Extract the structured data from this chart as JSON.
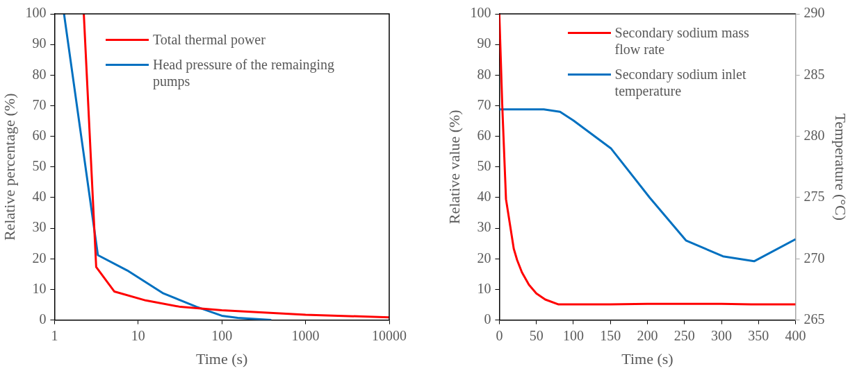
{
  "chart_data": [
    {
      "type": "line",
      "xlabel": "Time (s)",
      "ylabel": "Relative percentage (%)",
      "log": "x",
      "xlim": [
        1,
        10000
      ],
      "xticks": [
        1,
        10,
        100,
        1000,
        10000
      ],
      "ylim": [
        0,
        100
      ],
      "yticks": [
        0,
        10,
        20,
        30,
        40,
        50,
        60,
        70,
        80,
        90,
        100
      ],
      "grid": false,
      "legend": "top right",
      "marker": "none",
      "line_style": "solid",
      "series": [
        {
          "name": "Total thermal power",
          "color": "#ff0000",
          "x": [
            2.24,
            3.15,
            5.2,
            12.3,
            32,
            100,
            1000,
            10000
          ],
          "values": [
            100,
            17.3,
            9.3,
            6.4,
            4.3,
            3.2,
            1.7,
            0.9
          ]
        },
        {
          "name": "Head pressure of the remainging pumps",
          "color": "#0070c0",
          "x": [
            1.3,
            3.3,
            7.4,
            20,
            50,
            100,
            155,
            390
          ],
          "values": [
            100,
            21.2,
            16.2,
            8.7,
            4.3,
            1.4,
            0.7,
            0
          ]
        }
      ]
    },
    {
      "type": "line",
      "xlabel": "Time (s)",
      "ylabel": "Relative value (%)",
      "y2label": "Temperature (°C)",
      "xlim": [
        0,
        400
      ],
      "xticks": [
        0,
        50,
        100,
        150,
        200,
        250,
        300,
        350,
        400
      ],
      "ylim": [
        0,
        100
      ],
      "yticks": [
        0,
        10,
        20,
        30,
        40,
        50,
        60,
        70,
        80,
        90,
        100
      ],
      "y2lim": [
        265,
        290
      ],
      "y2ticks": [
        265,
        270,
        275,
        280,
        285,
        290
      ],
      "grid": false,
      "legend": "top right",
      "marker": "none",
      "line_style": "solid",
      "series": [
        {
          "name": "Secondary sodium mass flow rate",
          "color": "#ff0000",
          "x": [
            0,
            4,
            9,
            19.5,
            24,
            30.5,
            40,
            50,
            62,
            80,
            150,
            200,
            300,
            340,
            400
          ],
          "values": [
            100,
            69.8,
            39.5,
            23.3,
            19.6,
            15.6,
            11.5,
            8.7,
            6.7,
            5.1,
            5.1,
            5.3,
            5.3,
            5.1,
            5.1
          ]
        },
        {
          "name": "Secondary sodium inlet temperature",
          "color": "#0070c0",
          "axis": "y2",
          "x": [
            0,
            60,
            82,
            100,
            151,
            203,
            252,
            302,
            344,
            400
          ],
          "values": [
            282.2,
            282.2,
            282.0,
            281.3,
            279.0,
            275.0,
            271.5,
            270.2,
            269.8,
            271.6
          ]
        }
      ]
    }
  ]
}
